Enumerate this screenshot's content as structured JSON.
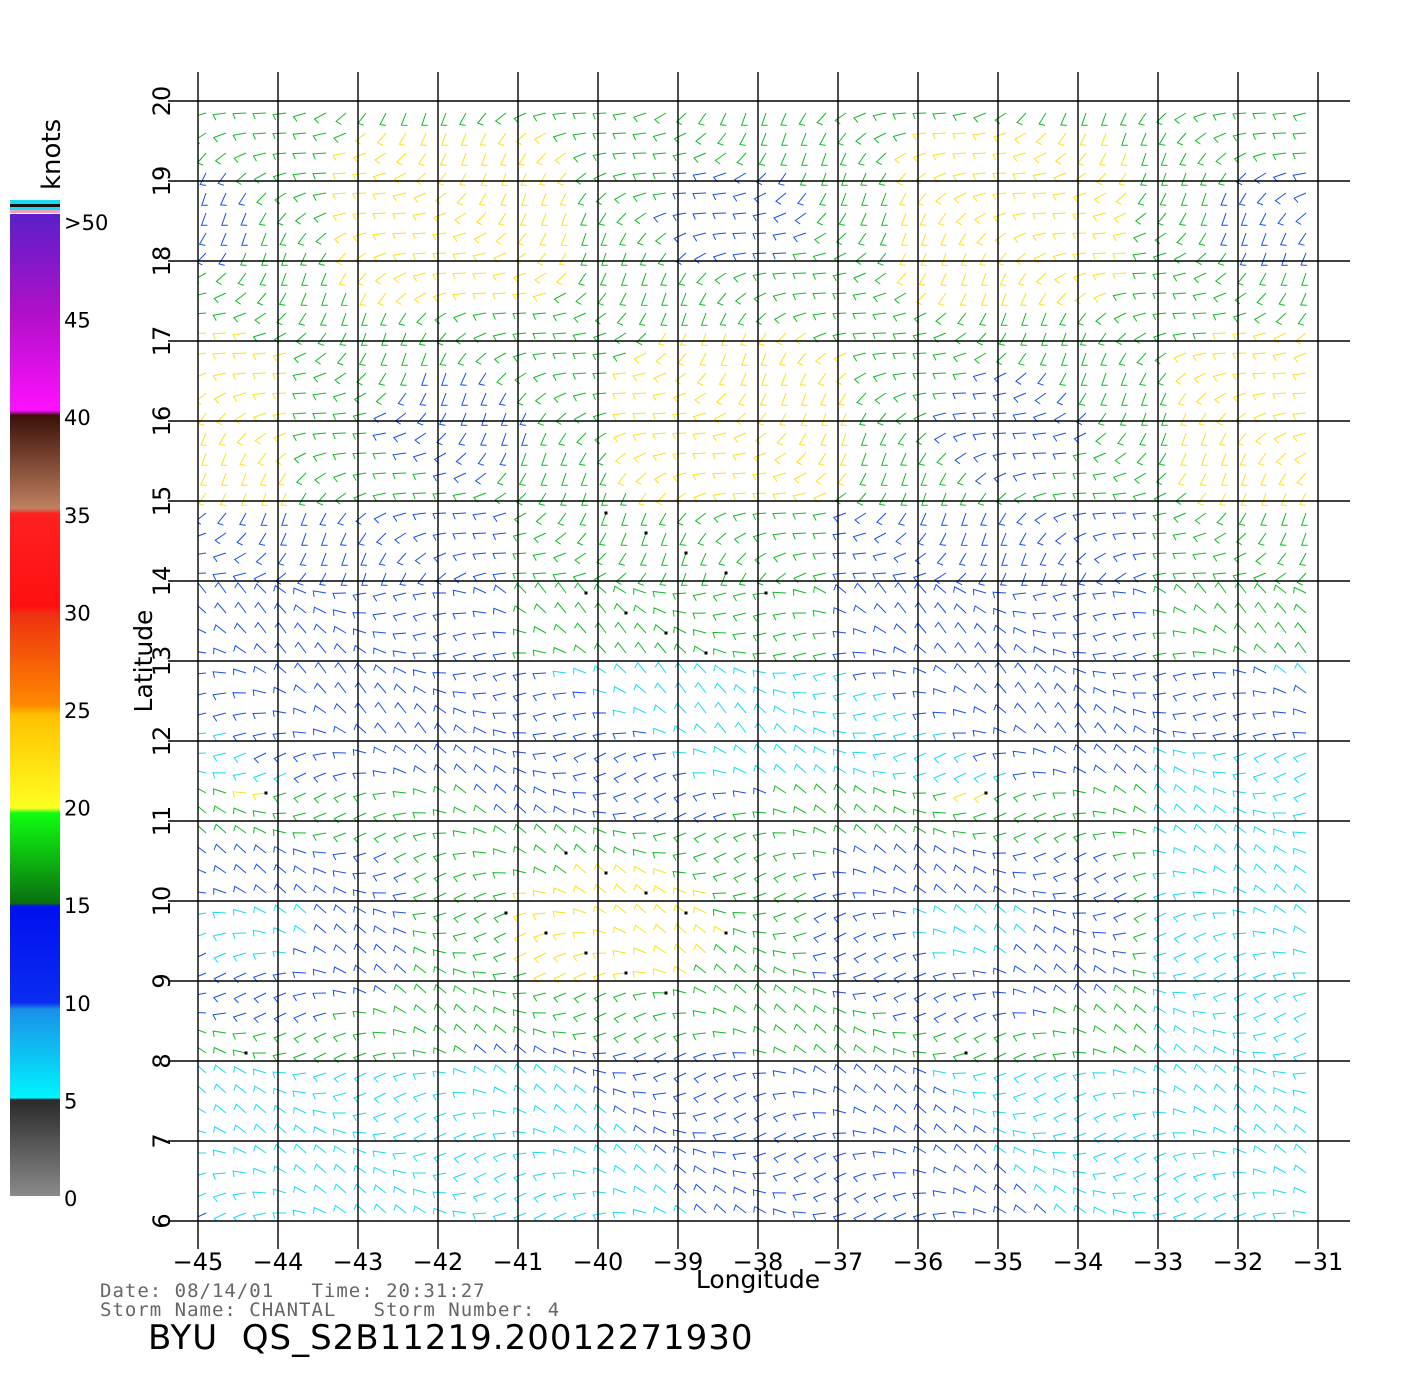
{
  "map": {
    "lon_range": [
      -45,
      -31
    ],
    "lat_range": [
      6,
      20
    ],
    "lon_ticks": [
      "−45",
      "−44",
      "−43",
      "−42",
      "−41",
      "−40",
      "−39",
      "−38",
      "−37",
      "−36",
      "−35",
      "−34",
      "−33",
      "−32",
      "−31"
    ],
    "lat_ticks": [
      "6",
      "7",
      "8",
      "9",
      "10",
      "11",
      "12",
      "13",
      "14",
      "15",
      "16",
      "17",
      "18",
      "19",
      "20"
    ],
    "x_label": "Longitude",
    "y_label": "Latitude",
    "grid": true
  },
  "colorbar": {
    "unit": "knots",
    "tick_labels": [
      "0",
      "5",
      "10",
      "15",
      "20",
      "25",
      "30",
      "35",
      "40",
      "45",
      ">50"
    ],
    "colors": {
      "gray": "#8a8a8a",
      "cyan": "#19d9f0",
      "blue": "#1a4fe6",
      "green": "#13b828",
      "yellow": "#f7e21e",
      "orange": "#ff7a00",
      "red": "#ee1c10",
      "brown": "#7a4020",
      "magenta": "#e60fe6",
      "purple": "#6f1dd0"
    }
  },
  "footer": {
    "date_line": "Date: 08/14/01   Time: 20:31:27",
    "storm_line": "Storm Name: CHANTAL   Storm Number: 4",
    "title": "BYU  QS_S2B11219.20012271930"
  }
}
